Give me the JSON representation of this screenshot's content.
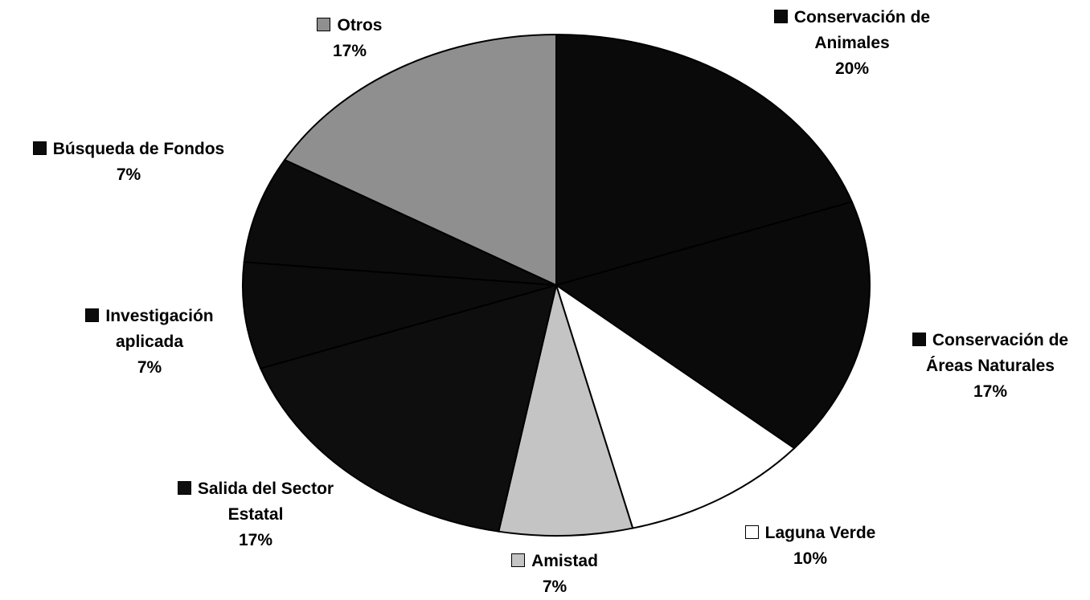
{
  "chart_data": {
    "type": "pie",
    "categories": [
      "Conservación de Animales",
      "Conservación de Áreas Naturales",
      "Laguna Verde",
      "Amistad",
      "Salida del Sector Estatal",
      "Investigación aplicada",
      "Búsqueda de Fondos",
      "Otros"
    ],
    "values": [
      20,
      17,
      10,
      7,
      17,
      7,
      7,
      17
    ],
    "value_labels": [
      "20%",
      "17%",
      "10%",
      "7%",
      "17%",
      "7%",
      "7%",
      "17%"
    ],
    "colors": [
      "#0a0a0a",
      "#0a0a0a",
      "#ffffff",
      "#c4c4c4",
      "#0e0e0e",
      "#0c0c0c",
      "#0c0c0c",
      "#8f8f8f"
    ]
  }
}
